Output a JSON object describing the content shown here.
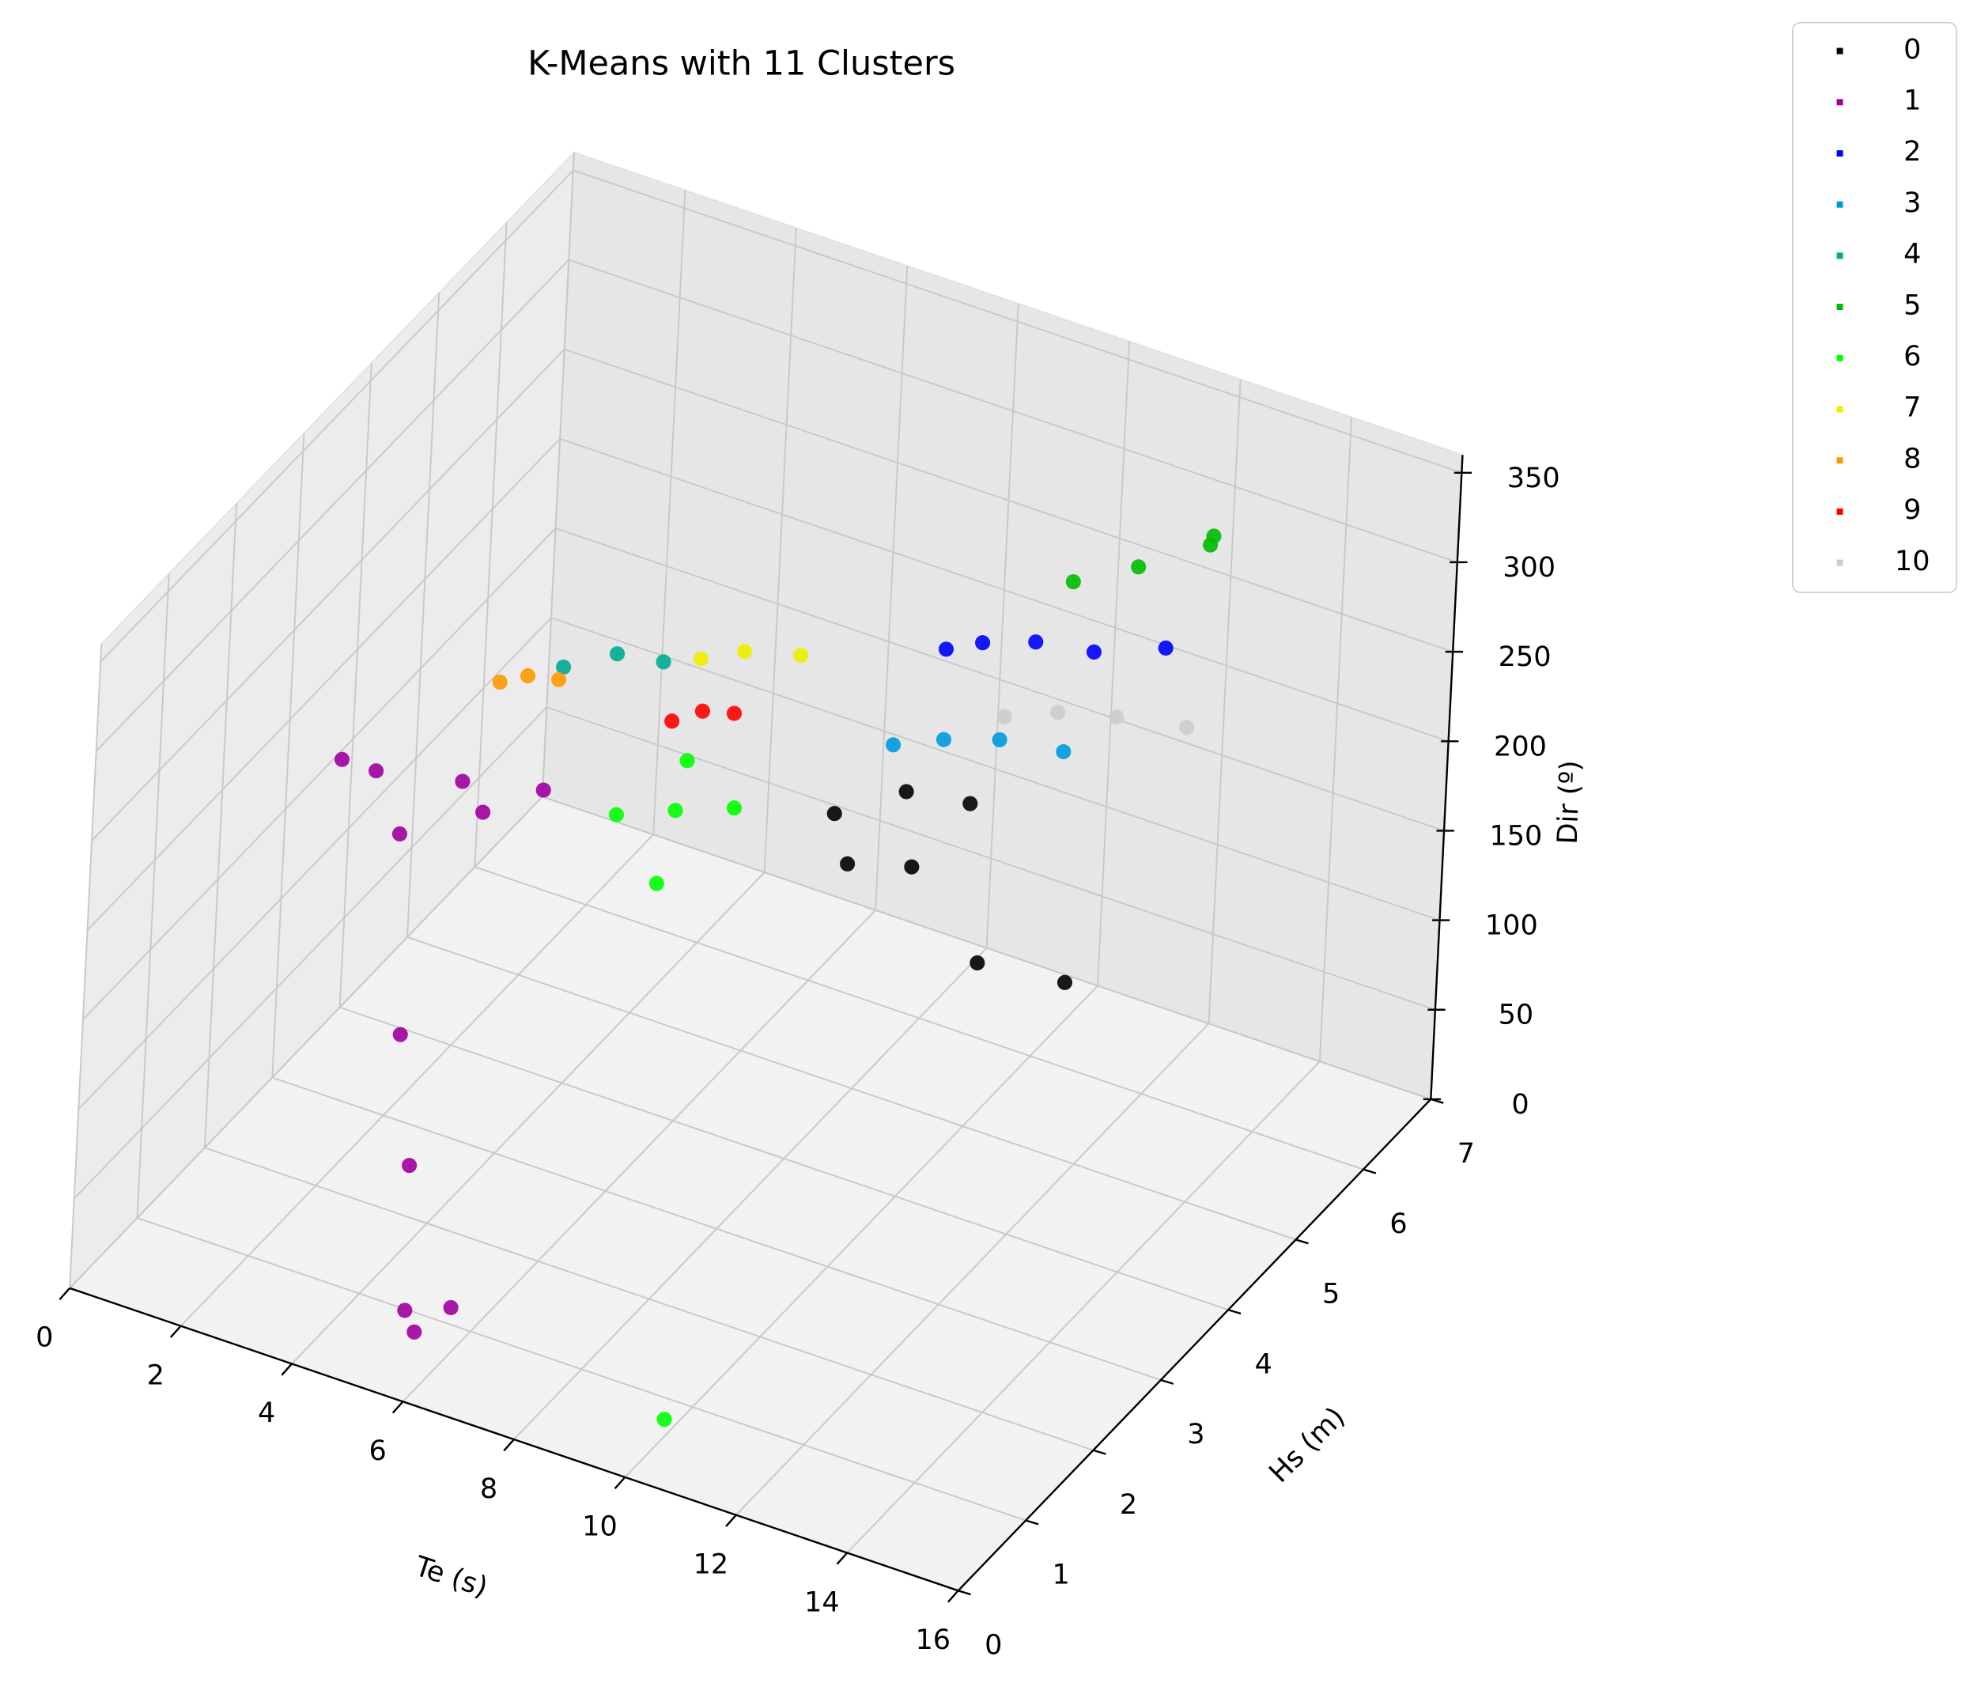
{
  "chart_data": {
    "type": "scatter3d",
    "title": "K-Means with 11 Clusters",
    "x_label": "Te (s)",
    "y_label": "Hs (m)",
    "z_label": "Dir (º)",
    "xlim": [
      0,
      16
    ],
    "ylim": [
      0,
      7
    ],
    "zlim": [
      0,
      360
    ],
    "xticks": [
      0,
      2,
      4,
      6,
      8,
      10,
      12,
      14,
      16
    ],
    "yticks": [
      0,
      1,
      2,
      3,
      4,
      5,
      6,
      7
    ],
    "zticks": [
      0,
      50,
      100,
      150,
      200,
      250,
      300,
      350
    ],
    "grid": true,
    "legend": "upper right outside",
    "series": [
      {
        "name": "0",
        "color": "#000000",
        "x": [
          9.5,
          10.3,
          11.1,
          10.0,
          10.8,
          12.5,
          13.5
        ],
        "y": [
          3.2,
          3.6,
          3.9,
          3.0,
          3.3,
          2.9,
          3.4
        ],
        "z": [
          240,
          245,
          235,
          225,
          220,
          200,
          180
        ]
      },
      {
        "name": "1",
        "color": "#a000a0",
        "x": [
          3.5,
          4.7,
          5.8,
          4.2,
          5.2,
          3.0,
          5.5,
          5.8,
          6.2,
          5.0,
          4.5
        ],
        "y": [
          1.3,
          1.6,
          1.9,
          1.1,
          1.5,
          1.2,
          0.4,
          0.3,
          0.5,
          0.8,
          1.0
        ],
        "z": [
          275,
          270,
          265,
          255,
          262,
          280,
          30,
          25,
          35,
          90,
          150
        ]
      },
      {
        "name": "2",
        "color": "#0000ff",
        "x": [
          10.5,
          11.1,
          11.8,
          12.5,
          10.2
        ],
        "y": [
          4.5,
          4.8,
          5.1,
          5.6,
          4.2
        ],
        "z": [
          295,
          290,
          280,
          270,
          300
        ]
      },
      {
        "name": "3",
        "color": "#0099dd",
        "x": [
          9.8,
          10.35,
          11.0,
          11.8
        ],
        "y": [
          3.8,
          4.1,
          4.4,
          4.7
        ],
        "z": [
          258,
          255,
          250,
          240
        ]
      },
      {
        "name": "4",
        "color": "#00aa90",
        "x": [
          4.8,
          5.4,
          6.0
        ],
        "y": [
          3.0,
          3.3,
          3.5
        ],
        "z": [
          280,
          282,
          276
        ]
      },
      {
        "name": "5",
        "color": "#00bb00",
        "x": [
          11.6,
          12.4,
          13.2,
          12.8
        ],
        "y": [
          4.9,
          5.2,
          5.6,
          6.0
        ],
        "z": [
          325,
          330,
          335,
          320
        ]
      },
      {
        "name": "6",
        "color": "#00ff00",
        "x": [
          7.0,
          7.7,
          8.4,
          8.0,
          7.3,
          10.0
        ],
        "y": [
          2.0,
          2.3,
          2.6,
          1.8,
          2.8,
          0.57
        ],
        "z": [
          260,
          258,
          255,
          240,
          262,
          10
        ]
      },
      {
        "name": "7",
        "color": "#eeee00",
        "x": [
          7.0,
          7.54,
          8.2
        ],
        "y": [
          3.2,
          3.4,
          3.7
        ],
        "z": [
          300,
          302,
          295
        ]
      },
      {
        "name": "8",
        "color": "#ff9900",
        "x": [
          3.8,
          4.12,
          4.5
        ],
        "y": [
          2.9,
          3.05,
          3.2
        ],
        "z": [
          265,
          266,
          262
        ]
      },
      {
        "name": "9",
        "color": "#ff0000",
        "x": [
          6.2,
          6.53,
          6.9
        ],
        "y": [
          3.5,
          3.68,
          3.85
        ],
        "z": [
          245,
          247,
          243
        ]
      },
      {
        "name": "10",
        "color": "#cccccc",
        "x": [
          10.5,
          11.1,
          11.8,
          12.6
        ],
        "y": [
          4.9,
          5.2,
          5.5,
          5.9
        ],
        "z": [
          238,
          235,
          228,
          215
        ]
      }
    ]
  }
}
